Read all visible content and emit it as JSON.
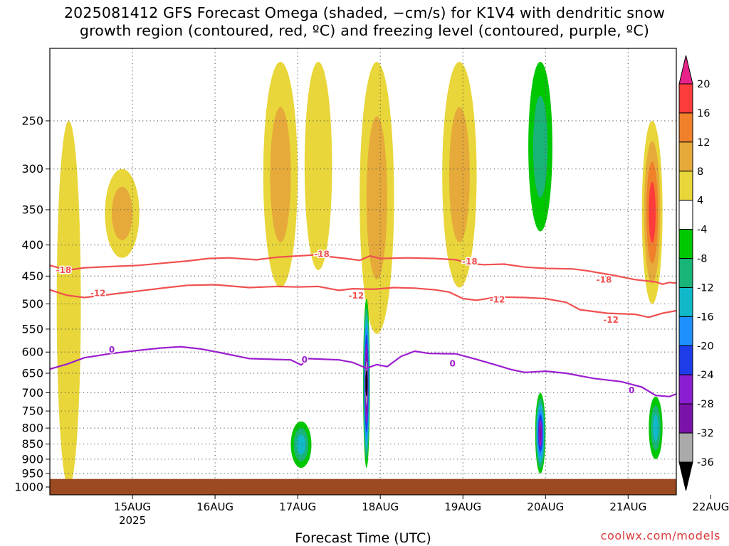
{
  "title": {
    "line1": "2025081412 GFS Forecast Omega (shaded, −cm/s) for K1V4 with dendritic snow",
    "line2": "growth region (contoured, red, ºC) and freezing level (contoured, purple, ºC)"
  },
  "credit": "coolwx.com/models",
  "chart_data": {
    "type": "heatmap",
    "xlabel": "Forecast Time (UTC)",
    "ylabel": "",
    "x_range_hours": [
      -14,
      168
    ],
    "y_range_hpa": [
      190,
      1030
    ],
    "y_scale": "log",
    "y_ticks": [
      250,
      300,
      350,
      400,
      450,
      500,
      550,
      600,
      650,
      700,
      750,
      800,
      850,
      900,
      950,
      1000
    ],
    "x_ticks": [
      {
        "label": "15AUG",
        "sub": "2025",
        "hour": 10
      },
      {
        "label": "16AUG",
        "sub": "",
        "hour": 34
      },
      {
        "label": "17AUG",
        "sub": "",
        "hour": 58
      },
      {
        "label": "18AUG",
        "sub": "",
        "hour": 82
      },
      {
        "label": "19AUG",
        "sub": "",
        "hour": 106
      },
      {
        "label": "20AUG",
        "sub": "",
        "hour": 130
      },
      {
        "label": "21AUG",
        "sub": "",
        "hour": 154
      },
      {
        "label": "22AUG",
        "sub": "",
        "hour": 178
      }
    ],
    "grid": true,
    "colorbar": {
      "labels": [
        "20",
        "16",
        "12",
        "8",
        "4",
        "-4",
        "-8",
        "-12",
        "-16",
        "-20",
        "-24",
        "-28",
        "-32",
        "-36"
      ],
      "colors": [
        "#ff3c3c",
        "#f0802a",
        "#e6aa3a",
        "#e8d63a",
        "#ffffff",
        "#00c800",
        "#18b478",
        "#10b8c8",
        "#1e90ff",
        "#1e3ce8",
        "#8a1ed0",
        "#7a14a8",
        "#aaaaaa"
      ],
      "top_arrow_color": "#e8228a",
      "bottom_arrow_color": "#000000"
    },
    "ground": {
      "color": "#9c4a22",
      "top_hpa": 970
    },
    "series": [
      {
        "name": "-18",
        "color": "#f05050",
        "points": [
          [
            -14,
            432
          ],
          [
            -9,
            440
          ],
          [
            -4,
            436
          ],
          [
            4,
            434
          ],
          [
            12,
            432
          ],
          [
            20,
            428
          ],
          [
            26,
            425
          ],
          [
            32,
            421
          ],
          [
            38,
            420
          ],
          [
            46,
            423
          ],
          [
            52,
            419
          ],
          [
            58,
            417
          ],
          [
            64,
            415
          ],
          [
            67,
            418
          ],
          [
            72,
            421
          ],
          [
            76,
            424
          ],
          [
            79,
            417
          ],
          [
            82,
            421
          ],
          [
            90,
            420
          ],
          [
            98,
            421
          ],
          [
            104,
            423
          ],
          [
            108,
            429
          ],
          [
            112,
            431
          ],
          [
            118,
            430
          ],
          [
            124,
            435
          ],
          [
            130,
            437
          ],
          [
            138,
            438
          ],
          [
            142,
            441
          ],
          [
            150,
            449
          ],
          [
            156,
            456
          ],
          [
            162,
            460
          ],
          [
            164,
            464
          ],
          [
            166,
            461
          ],
          [
            168,
            462
          ]
        ],
        "label_positions": [
          [
            -10,
            440
          ],
          [
            65,
            414
          ],
          [
            108,
            426
          ],
          [
            147,
            456
          ]
        ]
      },
      {
        "name": "-12",
        "color": "#f05050",
        "points": [
          [
            -14,
            474
          ],
          [
            -9,
            484
          ],
          [
            -4,
            488
          ],
          [
            4,
            482
          ],
          [
            12,
            476
          ],
          [
            20,
            470
          ],
          [
            26,
            466
          ],
          [
            34,
            465
          ],
          [
            44,
            470
          ],
          [
            52,
            468
          ],
          [
            58,
            469
          ],
          [
            64,
            468
          ],
          [
            70,
            475
          ],
          [
            74,
            472
          ],
          [
            80,
            473
          ],
          [
            86,
            470
          ],
          [
            92,
            471
          ],
          [
            98,
            474
          ],
          [
            102,
            478
          ],
          [
            106,
            490
          ],
          [
            110,
            493
          ],
          [
            116,
            487
          ],
          [
            124,
            488
          ],
          [
            130,
            490
          ],
          [
            136,
            497
          ],
          [
            140,
            511
          ],
          [
            148,
            518
          ],
          [
            156,
            520
          ],
          [
            160,
            526
          ],
          [
            164,
            518
          ],
          [
            168,
            513
          ]
        ],
        "label_positions": [
          [
            0,
            480
          ],
          [
            75,
            485
          ],
          [
            116,
            492
          ],
          [
            149,
            531
          ]
        ]
      },
      {
        "name": "0",
        "color": "#9b1ecf",
        "points": [
          [
            -14,
            640
          ],
          [
            -9,
            628
          ],
          [
            -4,
            613
          ],
          [
            4,
            603
          ],
          [
            12,
            596
          ],
          [
            18,
            591
          ],
          [
            24,
            588
          ],
          [
            30,
            593
          ],
          [
            36,
            602
          ],
          [
            44,
            615
          ],
          [
            52,
            617
          ],
          [
            56,
            618
          ],
          [
            59,
            630
          ],
          [
            61,
            615
          ],
          [
            64,
            616
          ],
          [
            70,
            618
          ],
          [
            74,
            624
          ],
          [
            78,
            638
          ],
          [
            81,
            629
          ],
          [
            84,
            634
          ],
          [
            88,
            610
          ],
          [
            92,
            598
          ],
          [
            96,
            603
          ],
          [
            104,
            604
          ],
          [
            110,
            617
          ],
          [
            116,
            631
          ],
          [
            120,
            641
          ],
          [
            124,
            648
          ],
          [
            130,
            645
          ],
          [
            136,
            650
          ],
          [
            144,
            663
          ],
          [
            152,
            671
          ],
          [
            158,
            685
          ],
          [
            162,
            707
          ],
          [
            166,
            710
          ],
          [
            168,
            703
          ]
        ],
        "label_positions": [
          [
            4,
            595
          ],
          [
            60,
            618
          ],
          [
            103,
            627
          ],
          [
            155,
            693
          ]
        ]
      }
    ],
    "omega_features": [
      {
        "hours": [
          -12,
          -5
        ],
        "hpa": [
          250,
          1000
        ],
        "value": 4
      },
      {
        "hours": [
          2,
          12
        ],
        "hpa": [
          300,
          420
        ],
        "value": 10
      },
      {
        "hours": [
          48,
          58
        ],
        "hpa": [
          200,
          470
        ],
        "value": 8
      },
      {
        "hours": [
          60,
          68
        ],
        "hpa": [
          200,
          440
        ],
        "value": 6
      },
      {
        "hours": [
          76,
          86
        ],
        "hpa": [
          200,
          560
        ],
        "value": 10
      },
      {
        "hours": [
          100,
          110
        ],
        "hpa": [
          200,
          470
        ],
        "value": 8
      },
      {
        "hours": [
          158,
          164
        ],
        "hpa": [
          250,
          500
        ],
        "value": 18
      },
      {
        "hours": [
          56,
          62
        ],
        "hpa": [
          780,
          930
        ],
        "value": -14
      },
      {
        "hours": [
          77,
          79
        ],
        "hpa": [
          490,
          930
        ],
        "value": -36
      },
      {
        "hours": [
          127,
          130
        ],
        "hpa": [
          700,
          950
        ],
        "value": -28
      },
      {
        "hours": [
          160,
          164
        ],
        "hpa": [
          710,
          900
        ],
        "value": -12
      },
      {
        "hours": [
          125,
          132
        ],
        "hpa": [
          200,
          380
        ],
        "value": -8
      }
    ]
  }
}
